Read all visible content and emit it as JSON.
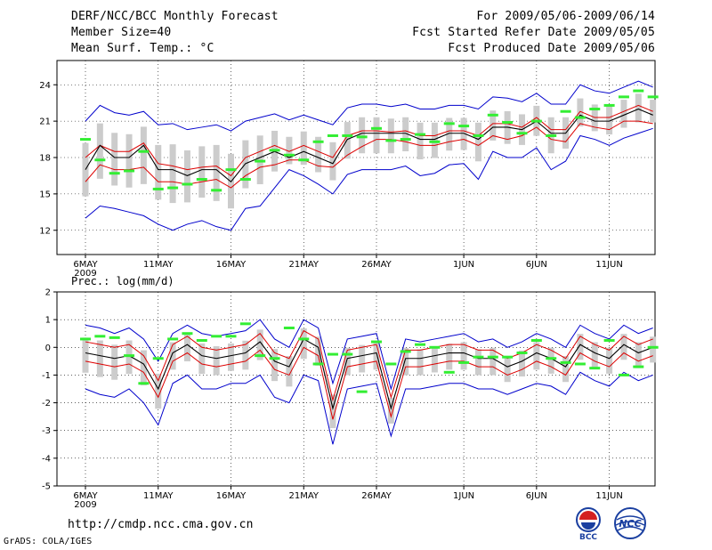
{
  "header": {
    "title": "DERF/NCC/BCC Monthly Forecast",
    "member_size": "Member Size=40",
    "variable": "Mean Surf. Temp.: °C",
    "period": "For 2009/05/06-2009/06/14",
    "start_date": "Fcst Started Refer Date 2009/05/05",
    "produced_date": "Fcst Produced Date 2009/05/06"
  },
  "footer": {
    "url": "http://cmdp.ncc.cma.gov.cn",
    "credit": "GrADS: COLA/IGES",
    "logo_bcc": "BCC",
    "logo_ncc": "NCC"
  },
  "colors": {
    "envelope": "#0000cc",
    "spread": "#dd0000",
    "mean": "#000000",
    "box": "#cccccc",
    "observed": "#33ee33"
  },
  "chart_data": [
    {
      "type": "line",
      "title": "Mean Surf. Temp.: °C",
      "x_tick_labels": [
        "6MAY",
        "11MAY",
        "16MAY",
        "21MAY",
        "26MAY",
        "1JUN",
        "6JUN",
        "11JUN"
      ],
      "x_tick_days": [
        1,
        6,
        11,
        16,
        21,
        27,
        32,
        37
      ],
      "year_label": "2009",
      "days": 40,
      "ylim": [
        10,
        26
      ],
      "yticks": [
        12,
        15,
        18,
        21,
        24
      ],
      "series": [
        {
          "name": "ensemble max",
          "values": [
            13,
            14,
            13.8,
            13.5,
            13.2,
            12.5,
            12,
            12.5,
            12.8,
            12.3,
            12,
            13.8,
            14,
            15.5,
            17,
            16.5,
            15.8,
            15,
            16.6,
            17,
            17,
            17,
            17.3,
            16.5,
            16.7,
            17.4,
            17.5,
            16.2,
            18.5,
            18,
            18,
            18.8,
            17,
            17.7,
            19.8,
            19.5,
            19,
            19.6,
            20,
            20.4
          ]
        },
        {
          "name": "spread upper",
          "values": [
            16,
            17.4,
            17,
            17,
            17.2,
            16,
            16,
            15.8,
            16,
            16.2,
            15.5,
            16.5,
            17.2,
            17.4,
            17.8,
            17.8,
            17.3,
            17.2,
            18.2,
            18.9,
            19.5,
            19.5,
            19.3,
            19,
            19,
            19.3,
            19.5,
            19,
            19.8,
            19.5,
            19.8,
            20.5,
            19.5,
            19.3,
            20.8,
            20.5,
            20.3,
            21,
            21,
            20.8
          ]
        },
        {
          "name": "ensemble mean",
          "values": [
            17,
            19,
            18,
            18,
            19,
            17,
            17,
            16.5,
            17,
            17,
            16,
            17.5,
            18,
            18.5,
            18,
            18.5,
            18,
            17.5,
            19.5,
            20,
            20,
            20,
            20,
            19.5,
            19.5,
            20,
            20,
            19.5,
            20.5,
            20.5,
            20.3,
            21,
            20,
            20,
            21.5,
            21,
            21,
            21.5,
            22,
            21.5
          ]
        },
        {
          "name": "spread lower",
          "values": [
            18,
            19,
            18.5,
            18.5,
            19.2,
            17.5,
            17.3,
            17,
            17.2,
            17.3,
            16.5,
            18,
            18.5,
            19,
            18.5,
            19,
            18.5,
            18,
            19.8,
            20.2,
            20.2,
            20.1,
            20.2,
            19.8,
            19.8,
            20.2,
            20.2,
            19.8,
            20.8,
            20.8,
            20.5,
            21.3,
            20.3,
            20.3,
            21.8,
            21.3,
            21.3,
            21.8,
            22.3,
            21.8
          ]
        },
        {
          "name": "ensemble min",
          "values": [
            21,
            22.3,
            21.7,
            21.5,
            21.8,
            20.7,
            20.8,
            20.3,
            20.5,
            20.7,
            20.2,
            21,
            21.3,
            21.6,
            21.1,
            21.5,
            21.1,
            20.7,
            22.1,
            22.4,
            22.4,
            22.2,
            22.4,
            22,
            22,
            22.3,
            22.3,
            22,
            23,
            22.9,
            22.6,
            23.3,
            22.4,
            22.4,
            24,
            23.5,
            23.3,
            23.8,
            24.3,
            23.8
          ]
        },
        {
          "name": "observed",
          "values": [
            19.5,
            17.8,
            16.7,
            16.9,
            18.5,
            15.4,
            15.5,
            15.8,
            16.2,
            15.3,
            17,
            16.2,
            17.7,
            18.6,
            18.2,
            17.8,
            19.3,
            19.8,
            19.8,
            19.7,
            20.4,
            19.4,
            19.5,
            19.9,
            19.3,
            20.8,
            20.6,
            19.8,
            21.5,
            20.9,
            20,
            21,
            19.8,
            21.8,
            21.3,
            22,
            22.3,
            23,
            23.5,
            23
          ]
        }
      ]
    },
    {
      "type": "line",
      "title": "Prec.: log(mm/d)",
      "x_tick_labels": [
        "6MAY",
        "11MAY",
        "16MAY",
        "21MAY",
        "26MAY",
        "1JUN",
        "6JUN",
        "11JUN"
      ],
      "x_tick_days": [
        1,
        6,
        11,
        16,
        21,
        27,
        32,
        37
      ],
      "year_label": "2009",
      "days": 40,
      "ylim": [
        -5,
        2
      ],
      "yticks": [
        -5,
        -4,
        -3,
        -2,
        -1,
        0,
        1,
        2
      ],
      "series": [
        {
          "name": "ensemble max",
          "values": [
            0.8,
            0.7,
            0.5,
            0.7,
            0.3,
            -0.5,
            0.5,
            0.8,
            0.5,
            0.4,
            0.5,
            0.6,
            1,
            0.3,
            0,
            1,
            0.7,
            -1.3,
            0.3,
            0.4,
            0.5,
            -1.5,
            0.3,
            0.2,
            0.3,
            0.4,
            0.5,
            0.2,
            0.3,
            0,
            0.2,
            0.5,
            0.3,
            0,
            0.8,
            0.5,
            0.3,
            0.8,
            0.5,
            0.7
          ]
        },
        {
          "name": "spread upper",
          "values": [
            0.2,
            0.1,
            0,
            0.1,
            -0.3,
            -1.2,
            0.1,
            0.4,
            0,
            -0.1,
            0,
            0.1,
            0.5,
            -0.2,
            -0.4,
            0.6,
            0.3,
            -1.9,
            -0.1,
            0,
            0.1,
            -1.8,
            -0.1,
            -0.1,
            0,
            0.1,
            0.1,
            -0.1,
            -0.1,
            -0.4,
            -0.2,
            0.1,
            -0.1,
            -0.4,
            0.4,
            0.1,
            -0.1,
            0.4,
            0.1,
            0.3
          ]
        },
        {
          "name": "ensemble mean",
          "values": [
            -0.2,
            -0.3,
            -0.4,
            -0.3,
            -0.6,
            -1.5,
            -0.2,
            0.1,
            -0.3,
            -0.4,
            -0.3,
            -0.2,
            0.2,
            -0.5,
            -0.7,
            0.3,
            0,
            -2.2,
            -0.4,
            -0.3,
            -0.2,
            -2.2,
            -0.4,
            -0.4,
            -0.3,
            -0.2,
            -0.2,
            -0.4,
            -0.4,
            -0.7,
            -0.5,
            -0.2,
            -0.4,
            -0.7,
            0.1,
            -0.2,
            -0.4,
            0.1,
            -0.2,
            0
          ]
        },
        {
          "name": "spread lower",
          "values": [
            -0.5,
            -0.6,
            -0.7,
            -0.6,
            -0.9,
            -1.8,
            -0.5,
            -0.2,
            -0.6,
            -0.7,
            -0.6,
            -0.5,
            -0.1,
            -0.8,
            -1,
            0,
            -0.3,
            -2.6,
            -0.7,
            -0.6,
            -0.5,
            -2.5,
            -0.7,
            -0.7,
            -0.6,
            -0.5,
            -0.5,
            -0.7,
            -0.7,
            -1,
            -0.8,
            -0.5,
            -0.7,
            -1,
            -0.2,
            -0.5,
            -0.7,
            -0.2,
            -0.5,
            -0.3
          ]
        },
        {
          "name": "ensemble min",
          "values": [
            -1.5,
            -1.7,
            -1.8,
            -1.5,
            -2,
            -2.8,
            -1.3,
            -1,
            -1.5,
            -1.5,
            -1.3,
            -1.3,
            -1,
            -1.8,
            -2,
            -1,
            -1.2,
            -3.5,
            -1.5,
            -1.4,
            -1.3,
            -3.2,
            -1.5,
            -1.5,
            -1.4,
            -1.3,
            -1.3,
            -1.5,
            -1.5,
            -1.7,
            -1.5,
            -1.3,
            -1.4,
            -1.7,
            -0.9,
            -1.2,
            -1.4,
            -0.9,
            -1.2,
            -1
          ]
        },
        {
          "name": "observed",
          "values": [
            0.3,
            0.4,
            0.35,
            -0.3,
            -1.3,
            -0.4,
            0.3,
            0.5,
            0.25,
            0.4,
            0.4,
            0.85,
            -0.3,
            -0.4,
            0.7,
            0.3,
            -0.6,
            -0.25,
            -0.25,
            -1.6,
            0.2,
            -0.6,
            -0.15,
            0.1,
            0,
            -0.9,
            -0.55,
            -0.35,
            -0.35,
            -0.35,
            -0.2,
            0.25,
            -0.4,
            -0.55,
            -0.6,
            -0.75,
            0.25,
            -1,
            -0.7,
            0
          ]
        }
      ]
    }
  ]
}
